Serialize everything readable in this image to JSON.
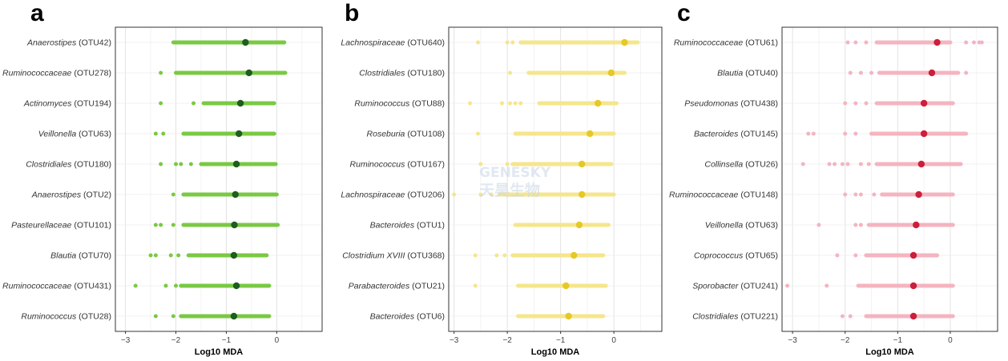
{
  "watermark": {
    "line1": "GENESKY",
    "line2": "天昊生物"
  },
  "chart_data": [
    {
      "panel": "a",
      "type": "scatter",
      "xlabel": "Log10 MDA",
      "xlim": [
        -3.2,
        0.9
      ],
      "xticks": [
        -3,
        -2,
        -1,
        0
      ],
      "colors": {
        "point": "#7ac943",
        "median": "#1e5e1e"
      },
      "rows": [
        {
          "genus": "Anaerostipes",
          "otu": "(OTU42)",
          "min": -2.05,
          "max": 0.15,
          "median": -0.62,
          "outliers": []
        },
        {
          "genus": "Ruminococcaceae",
          "otu": "(OTU278)",
          "min": -2.0,
          "max": 0.17,
          "median": -0.55,
          "outliers": [
            -2.3
          ]
        },
        {
          "genus": "Actinomyces",
          "otu": "(OTU194)",
          "min": -1.45,
          "max": -0.05,
          "median": -0.72,
          "outliers": [
            -2.3,
            -1.65
          ]
        },
        {
          "genus": "Veillonella",
          "otu": "(OTU63)",
          "min": -1.85,
          "max": -0.05,
          "median": -0.75,
          "outliers": [
            -2.4,
            -2.25
          ]
        },
        {
          "genus": "Clostridiales",
          "otu": "(OTU180)",
          "min": -1.5,
          "max": -0.02,
          "median": -0.8,
          "outliers": [
            -2.3,
            -2.0,
            -1.9,
            -1.7
          ]
        },
        {
          "genus": "Anaerostipes",
          "otu": "(OTU2)",
          "min": -1.85,
          "max": 0.0,
          "median": -0.82,
          "outliers": [
            -2.05
          ]
        },
        {
          "genus": "Pasteurellaceae",
          "otu": "(OTU101)",
          "min": -1.85,
          "max": 0.02,
          "median": -0.84,
          "outliers": [
            -2.4,
            -2.3,
            -2.05
          ]
        },
        {
          "genus": "Blautia",
          "otu": "(OTU70)",
          "min": -1.75,
          "max": -0.2,
          "median": -0.85,
          "outliers": [
            -2.5,
            -2.4,
            -2.1,
            -1.95
          ]
        },
        {
          "genus": "Ruminococcaceae",
          "otu": "(OTU431)",
          "min": -1.9,
          "max": -0.15,
          "median": -0.8,
          "outliers": [
            -2.8,
            -2.2,
            -2.0
          ]
        },
        {
          "genus": "Ruminococcus",
          "otu": "(OTU28)",
          "min": -1.9,
          "max": -0.15,
          "median": -0.85,
          "outliers": [
            -2.4,
            -2.05
          ]
        }
      ]
    },
    {
      "panel": "b",
      "type": "scatter",
      "xlabel": "Log10 MDA",
      "xlim": [
        -3.1,
        0.9
      ],
      "xticks": [
        -3,
        -2,
        -1,
        0
      ],
      "colors": {
        "point": "#f5e68c",
        "median": "#e6c826"
      },
      "rows": [
        {
          "genus": "Lachnospiraceae",
          "otu": "(OTU640)",
          "min": -1.75,
          "max": 0.45,
          "median": 0.2,
          "outliers": [
            -2.55,
            -2.0,
            -1.9
          ]
        },
        {
          "genus": "Clostridiales",
          "otu": "(OTU180)",
          "min": -1.6,
          "max": 0.2,
          "median": -0.05,
          "outliers": [
            -1.95
          ]
        },
        {
          "genus": "Ruminococcus",
          "otu": "(OTU88)",
          "min": -1.4,
          "max": 0.05,
          "median": -0.3,
          "outliers": [
            -2.7,
            -2.1,
            -1.95,
            -1.85,
            -1.75
          ]
        },
        {
          "genus": "Roseburia",
          "otu": "(OTU108)",
          "min": -1.85,
          "max": 0.0,
          "median": -0.45,
          "outliers": [
            -2.55
          ]
        },
        {
          "genus": "Ruminococcus",
          "otu": "(OTU167)",
          "min": -1.9,
          "max": -0.05,
          "median": -0.6,
          "outliers": [
            -2.5,
            -2.0
          ]
        },
        {
          "genus": "Lachnospiraceae",
          "otu": "(OTU206)",
          "min": -2.15,
          "max": 0.0,
          "median": -0.6,
          "outliers": [
            -3.0,
            -2.5,
            -2.3
          ]
        },
        {
          "genus": "Bacteroides",
          "otu": "(OTU1)",
          "min": -1.85,
          "max": -0.1,
          "median": -0.65,
          "outliers": []
        },
        {
          "genus": "Clostridium XVIII",
          "otu": "(OTU368)",
          "min": -1.9,
          "max": -0.2,
          "median": -0.75,
          "outliers": [
            -2.6,
            -2.2,
            -2.05
          ]
        },
        {
          "genus": "Parabacteroides",
          "otu": "(OTU21)",
          "min": -1.8,
          "max": -0.15,
          "median": -0.9,
          "outliers": [
            -2.6
          ]
        },
        {
          "genus": "Bacteroides",
          "otu": "(OTU6)",
          "min": -1.8,
          "max": -0.2,
          "median": -0.85,
          "outliers": []
        }
      ]
    },
    {
      "panel": "c",
      "type": "scatter",
      "xlabel": "Log10 MDA",
      "xlim": [
        -3.2,
        0.9
      ],
      "xticks": [
        -3,
        -2,
        -1,
        0
      ],
      "colors": {
        "point": "#f4b4c0",
        "median": "#cc1f3b"
      },
      "rows": [
        {
          "genus": "Ruminococcaceae",
          "otu": "(OTU61)",
          "min": -1.4,
          "max": 0.0,
          "median": -0.25,
          "outliers": [
            -1.95,
            -1.8,
            -1.6,
            0.3,
            0.45,
            0.55,
            0.6
          ]
        },
        {
          "genus": "Blautia",
          "otu": "(OTU40)",
          "min": -1.35,
          "max": 0.15,
          "median": -0.35,
          "outliers": [
            -1.9,
            -1.7,
            -1.5,
            0.3
          ]
        },
        {
          "genus": "Pseudomonas",
          "otu": "(OTU438)",
          "min": -1.4,
          "max": 0.05,
          "median": -0.5,
          "outliers": [
            -2.0,
            -1.8,
            -1.6
          ]
        },
        {
          "genus": "Bacteroides",
          "otu": "(OTU145)",
          "min": -1.5,
          "max": 0.3,
          "median": -0.5,
          "outliers": [
            -2.7,
            -2.6,
            -2.0,
            -1.8
          ]
        },
        {
          "genus": "Collinsella",
          "otu": "(OTU26)",
          "min": -1.4,
          "max": 0.2,
          "median": -0.55,
          "outliers": [
            -2.8,
            -2.3,
            -2.2,
            -2.05,
            -1.95,
            -1.7,
            -1.55
          ]
        },
        {
          "genus": "Ruminococcaceae",
          "otu": "(OTU148)",
          "min": -1.3,
          "max": 0.05,
          "median": -0.6,
          "outliers": [
            -2.0,
            -1.8,
            -1.7,
            -1.45
          ]
        },
        {
          "genus": "Veillonella",
          "otu": "(OTU63)",
          "min": -1.55,
          "max": 0.05,
          "median": -0.65,
          "outliers": [
            -2.5,
            -1.8,
            -1.7
          ]
        },
        {
          "genus": "Coprococcus",
          "otu": "(OTU65)",
          "min": -1.6,
          "max": -0.25,
          "median": -0.7,
          "outliers": [
            -2.15,
            -1.8
          ]
        },
        {
          "genus": "Sporobacter",
          "otu": "(OTU241)",
          "min": -1.75,
          "max": 0.05,
          "median": -0.7,
          "outliers": [
            -3.1,
            -2.35
          ]
        },
        {
          "genus": "Clostridiales",
          "otu": "(OTU221)",
          "min": -1.6,
          "max": 0.05,
          "median": -0.7,
          "outliers": [
            -2.05,
            -1.9
          ]
        }
      ]
    }
  ]
}
